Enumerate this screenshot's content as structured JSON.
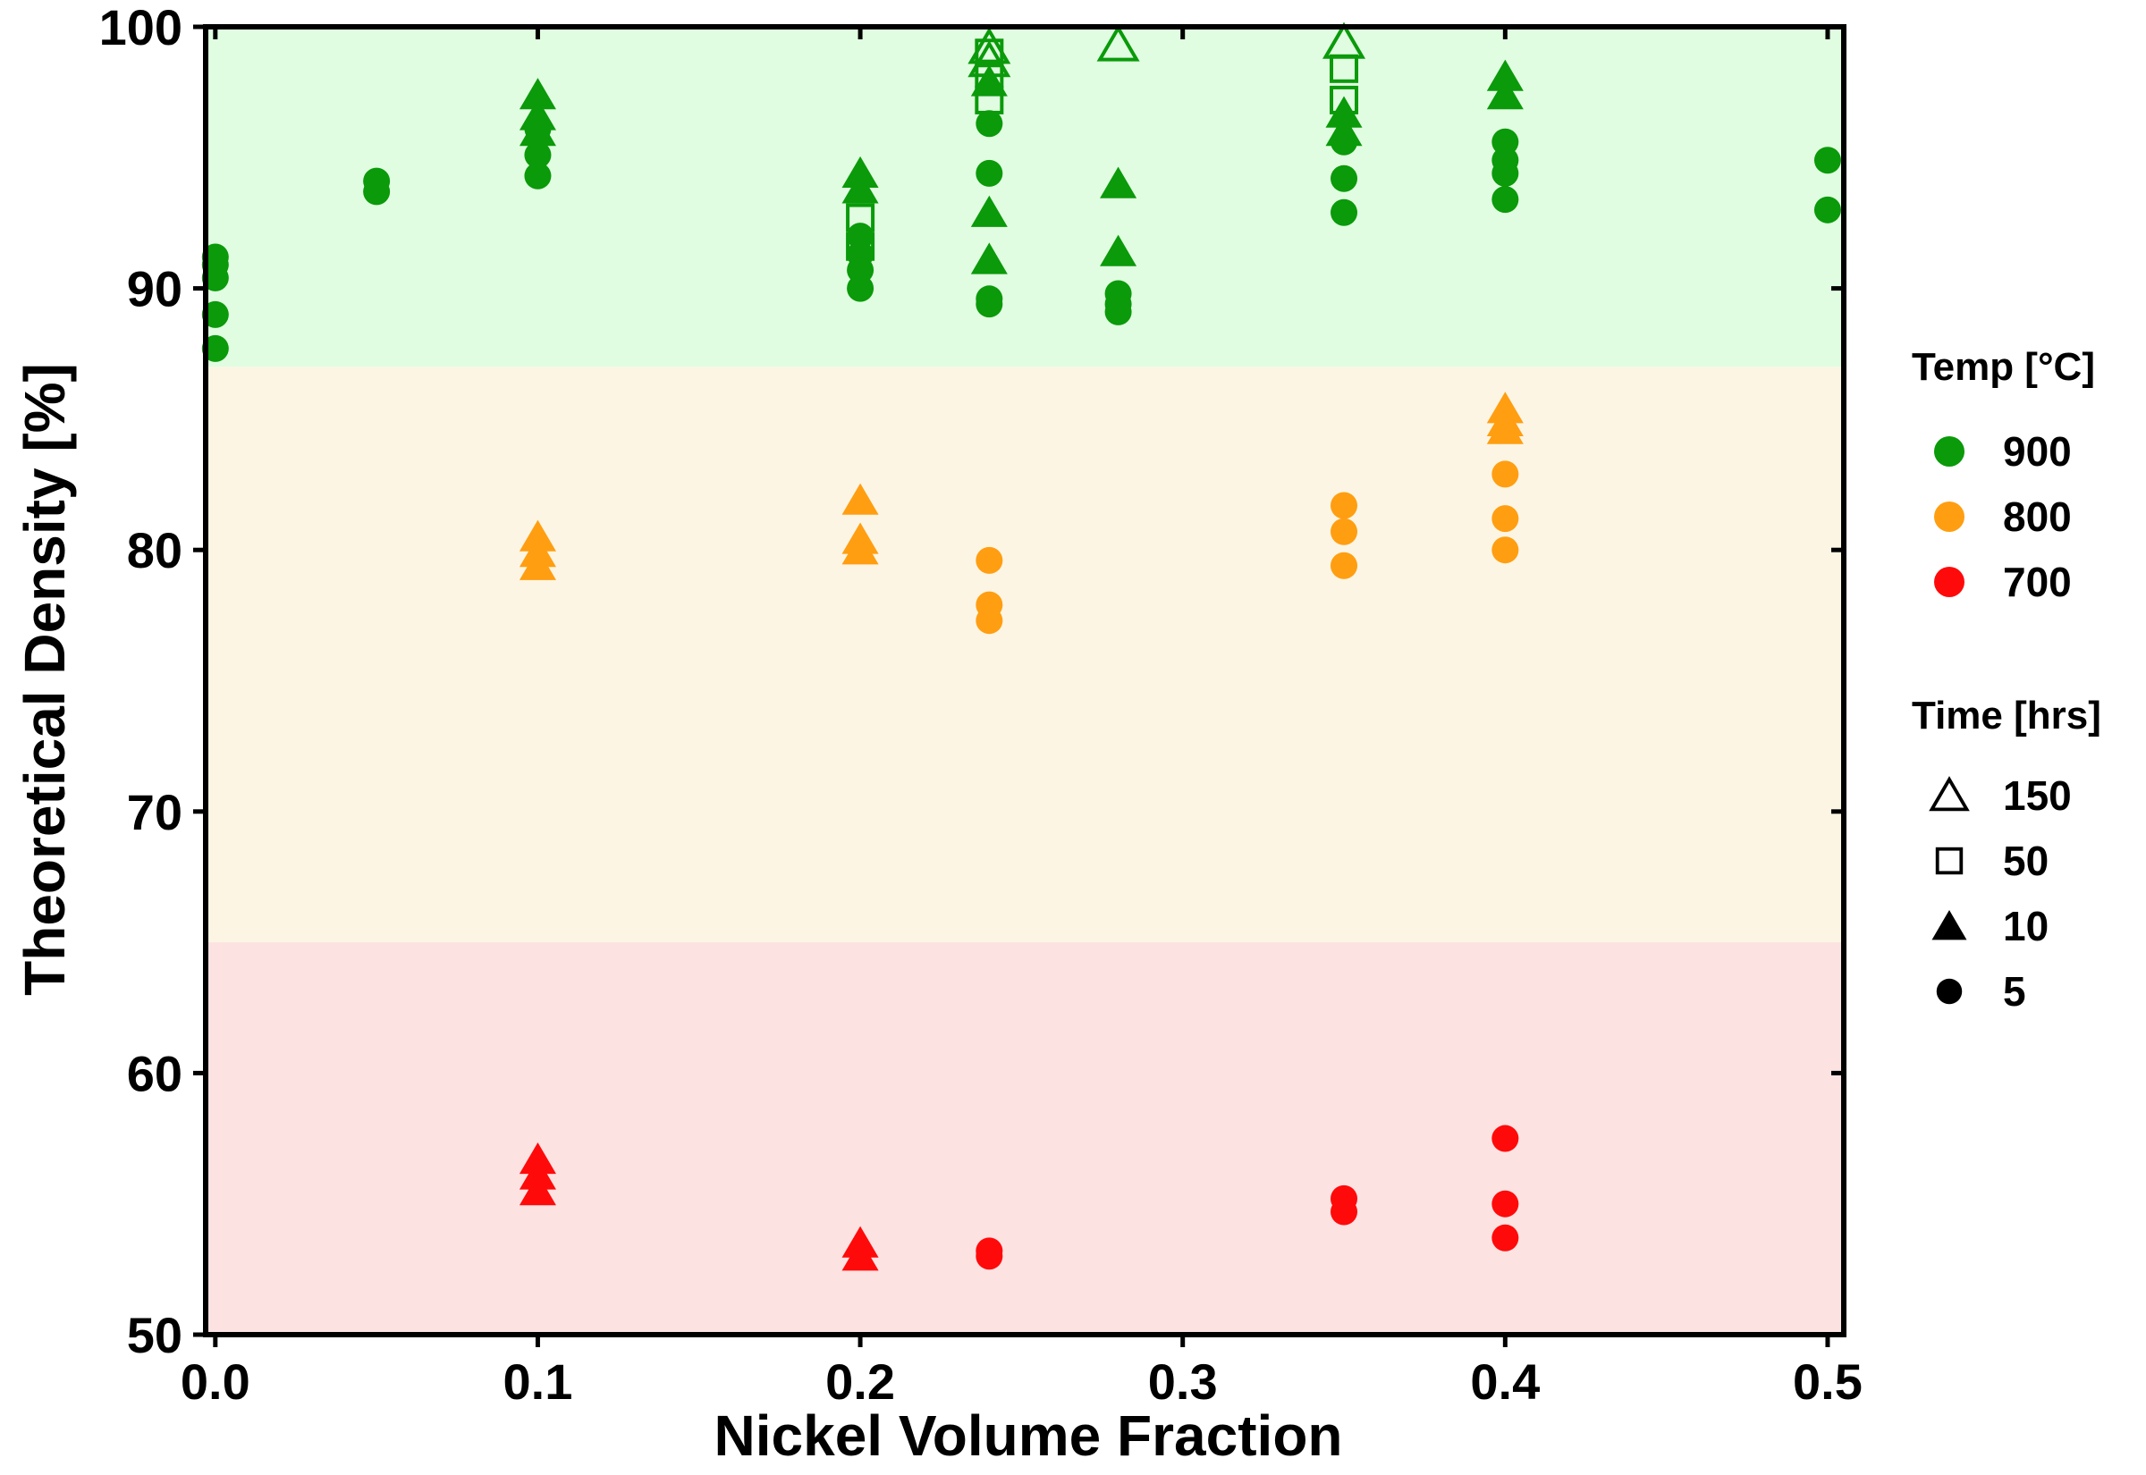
{
  "chart_data": {
    "type": "scatter",
    "xlabel": "Nickel Volume Fraction",
    "ylabel": "Theoretical Density [%]",
    "xlim": [
      -0.003,
      0.505
    ],
    "ylim": [
      50,
      100
    ],
    "xticks": [
      0.0,
      0.1,
      0.2,
      0.3,
      0.4,
      0.5
    ],
    "xtick_labels": [
      "0.0",
      "0.1",
      "0.2",
      "0.3",
      "0.4",
      "0.5"
    ],
    "yticks": [
      50,
      60,
      70,
      80,
      90,
      100
    ],
    "ytick_labels": [
      "50",
      "60",
      "70",
      "80",
      "90",
      "100"
    ],
    "grid": false,
    "bands": [
      {
        "y0": 87,
        "y1": 100,
        "color": "#e1fde1"
      },
      {
        "y0": 65,
        "y1": 87,
        "color": "#fdf5e4"
      },
      {
        "y0": 50,
        "y1": 65,
        "color": "#fde2e2"
      }
    ],
    "legend_position": "right",
    "temp_legend": {
      "title": "Temp [°C]",
      "items": [
        {
          "label": "900",
          "color": "#0a9a0a"
        },
        {
          "label": "800",
          "color": "#ff9e11"
        },
        {
          "label": "700",
          "color": "#ff0a0a"
        }
      ]
    },
    "time_legend": {
      "title": "Time [hrs]",
      "items": [
        {
          "label": "150",
          "marker": "triangle-open"
        },
        {
          "label": "50",
          "marker": "square-open"
        },
        {
          "label": "10",
          "marker": "triangle"
        },
        {
          "label": "5",
          "marker": "circle"
        }
      ]
    },
    "series": [
      {
        "temp": "900",
        "time": "5",
        "marker": "circle",
        "color": "#0a9a0a",
        "points": [
          [
            0.0,
            91.2
          ],
          [
            0.0,
            90.9
          ],
          [
            0.0,
            90.4
          ],
          [
            0.0,
            89.0
          ],
          [
            0.0,
            87.7
          ],
          [
            0.05,
            94.1
          ],
          [
            0.05,
            93.7
          ],
          [
            0.1,
            96.1
          ],
          [
            0.1,
            95.1
          ],
          [
            0.1,
            94.3
          ],
          [
            0.2,
            92.0
          ],
          [
            0.2,
            91.3
          ],
          [
            0.2,
            90.7
          ],
          [
            0.2,
            90.0
          ],
          [
            0.24,
            96.3
          ],
          [
            0.24,
            94.4
          ],
          [
            0.24,
            89.6
          ],
          [
            0.24,
            89.4
          ],
          [
            0.28,
            89.8
          ],
          [
            0.28,
            89.4
          ],
          [
            0.28,
            89.1
          ],
          [
            0.35,
            95.6
          ],
          [
            0.35,
            94.2
          ],
          [
            0.35,
            92.9
          ],
          [
            0.4,
            95.6
          ],
          [
            0.4,
            94.9
          ],
          [
            0.4,
            94.4
          ],
          [
            0.4,
            93.4
          ],
          [
            0.5,
            94.9
          ],
          [
            0.5,
            93.0
          ]
        ]
      },
      {
        "temp": "900",
        "time": "10",
        "marker": "triangle",
        "color": "#0a9a0a",
        "points": [
          [
            0.1,
            97.4
          ],
          [
            0.1,
            96.6
          ],
          [
            0.1,
            96.0
          ],
          [
            0.2,
            94.4
          ],
          [
            0.2,
            93.8
          ],
          [
            0.24,
            97.9
          ],
          [
            0.24,
            92.9
          ],
          [
            0.24,
            91.1
          ],
          [
            0.28,
            94.0
          ],
          [
            0.28,
            91.4
          ],
          [
            0.35,
            96.7
          ],
          [
            0.35,
            96.0
          ],
          [
            0.4,
            98.1
          ],
          [
            0.4,
            97.4
          ]
        ]
      },
      {
        "temp": "900",
        "time": "50",
        "marker": "square-open",
        "color": "#0a9a0a",
        "points": [
          [
            0.2,
            92.7
          ],
          [
            0.2,
            91.6
          ],
          [
            0.24,
            99.0
          ],
          [
            0.24,
            98.2
          ],
          [
            0.24,
            97.2
          ],
          [
            0.35,
            98.4
          ],
          [
            0.35,
            97.2
          ]
        ]
      },
      {
        "temp": "900",
        "time": "150",
        "marker": "triangle-open",
        "color": "#0a9a0a",
        "points": [
          [
            0.24,
            99.2
          ],
          [
            0.24,
            98.7
          ],
          [
            0.28,
            99.3
          ],
          [
            0.35,
            99.4
          ]
        ]
      },
      {
        "temp": "800",
        "time": "5",
        "marker": "circle",
        "color": "#ff9e11",
        "points": [
          [
            0.24,
            79.6
          ],
          [
            0.24,
            77.9
          ],
          [
            0.24,
            77.3
          ],
          [
            0.35,
            81.7
          ],
          [
            0.35,
            80.7
          ],
          [
            0.35,
            79.4
          ],
          [
            0.4,
            82.9
          ],
          [
            0.4,
            81.2
          ],
          [
            0.4,
            80.0
          ]
        ]
      },
      {
        "temp": "800",
        "time": "10",
        "marker": "triangle",
        "color": "#ff9e11",
        "points": [
          [
            0.1,
            80.5
          ],
          [
            0.1,
            79.9
          ],
          [
            0.1,
            79.4
          ],
          [
            0.2,
            81.9
          ],
          [
            0.2,
            80.4
          ],
          [
            0.2,
            80.0
          ],
          [
            0.4,
            85.4
          ],
          [
            0.4,
            84.9
          ],
          [
            0.4,
            84.6
          ]
        ]
      },
      {
        "temp": "700",
        "time": "5",
        "marker": "circle",
        "color": "#ff0a0a",
        "points": [
          [
            0.24,
            53.2
          ],
          [
            0.24,
            53.0
          ],
          [
            0.35,
            55.2
          ],
          [
            0.35,
            54.7
          ],
          [
            0.4,
            57.5
          ],
          [
            0.4,
            55.0
          ],
          [
            0.4,
            53.7
          ]
        ]
      },
      {
        "temp": "700",
        "time": "10",
        "marker": "triangle",
        "color": "#ff0a0a",
        "points": [
          [
            0.1,
            56.7
          ],
          [
            0.1,
            56.1
          ],
          [
            0.1,
            55.5
          ],
          [
            0.2,
            53.5
          ],
          [
            0.2,
            53.0
          ]
        ]
      }
    ]
  }
}
